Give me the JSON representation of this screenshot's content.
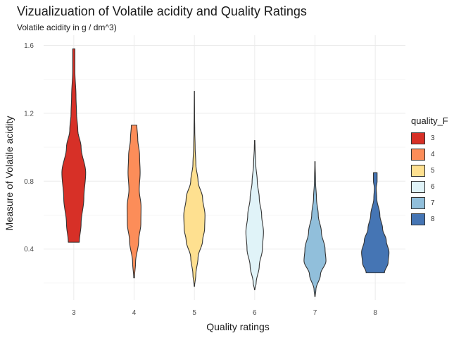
{
  "chart_data": {
    "type": "violin",
    "title": "Vizualizuation of Volatile acidity and Quality Ratings",
    "subtitle": "Volatile acidity in g / dm^3)",
    "xlabel": "Quality ratings",
    "ylabel": "Measure of Volatile acidity",
    "categories": [
      "3",
      "4",
      "5",
      "6",
      "7",
      "8"
    ],
    "y_ticks": [
      "0.4",
      "0.8",
      "1.2",
      "1.6"
    ],
    "ylim": [
      0.1,
      1.66
    ],
    "legend_title": "quality_F",
    "legend_position": "right",
    "grid": true,
    "colors": [
      "#d73027",
      "#fc8d59",
      "#fee090",
      "#e0f3f8",
      "#91bfdb",
      "#4575b4"
    ],
    "series": [
      {
        "name": "3",
        "min": 0.44,
        "max": 1.58,
        "profile": [
          [
            0.44,
            0.3
          ],
          [
            0.55,
            0.4
          ],
          [
            0.7,
            0.55
          ],
          [
            0.85,
            0.65
          ],
          [
            1.0,
            0.4
          ],
          [
            1.1,
            0.22
          ],
          [
            1.2,
            0.15
          ],
          [
            1.3,
            0.12
          ],
          [
            1.45,
            0.06
          ],
          [
            1.58,
            0.06
          ]
        ]
      },
      {
        "name": "4",
        "min": 0.23,
        "max": 1.13,
        "profile": [
          [
            0.23,
            0.02
          ],
          [
            0.32,
            0.08
          ],
          [
            0.45,
            0.25
          ],
          [
            0.55,
            0.37
          ],
          [
            0.65,
            0.38
          ],
          [
            0.75,
            0.28
          ],
          [
            0.85,
            0.33
          ],
          [
            0.95,
            0.3
          ],
          [
            1.05,
            0.2
          ],
          [
            1.13,
            0.15
          ]
        ]
      },
      {
        "name": "5",
        "min": 0.18,
        "max": 1.33,
        "profile": [
          [
            0.18,
            0.01
          ],
          [
            0.25,
            0.08
          ],
          [
            0.35,
            0.2
          ],
          [
            0.45,
            0.45
          ],
          [
            0.52,
            0.56
          ],
          [
            0.6,
            0.58
          ],
          [
            0.7,
            0.45
          ],
          [
            0.8,
            0.2
          ],
          [
            0.9,
            0.08
          ],
          [
            1.0,
            0.04
          ],
          [
            1.1,
            0.02
          ],
          [
            1.2,
            0.01
          ],
          [
            1.33,
            0.005
          ]
        ]
      },
      {
        "name": "6",
        "min": 0.16,
        "max": 1.04,
        "profile": [
          [
            0.16,
            0.01
          ],
          [
            0.2,
            0.08
          ],
          [
            0.3,
            0.25
          ],
          [
            0.4,
            0.42
          ],
          [
            0.5,
            0.48
          ],
          [
            0.6,
            0.38
          ],
          [
            0.7,
            0.25
          ],
          [
            0.8,
            0.14
          ],
          [
            0.9,
            0.06
          ],
          [
            1.0,
            0.02
          ],
          [
            1.04,
            0.01
          ]
        ]
      },
      {
        "name": "7",
        "min": 0.12,
        "max": 0.915,
        "profile": [
          [
            0.12,
            0.01
          ],
          [
            0.16,
            0.05
          ],
          [
            0.25,
            0.3
          ],
          [
            0.33,
            0.6
          ],
          [
            0.4,
            0.55
          ],
          [
            0.5,
            0.35
          ],
          [
            0.6,
            0.18
          ],
          [
            0.7,
            0.08
          ],
          [
            0.8,
            0.03
          ],
          [
            0.9,
            0.01
          ],
          [
            0.915,
            0.01
          ]
        ]
      },
      {
        "name": "8",
        "min": 0.26,
        "max": 0.85,
        "profile": [
          [
            0.26,
            0.5
          ],
          [
            0.32,
            0.7
          ],
          [
            0.38,
            0.75
          ],
          [
            0.45,
            0.6
          ],
          [
            0.52,
            0.4
          ],
          [
            0.6,
            0.25
          ],
          [
            0.7,
            0.08
          ],
          [
            0.76,
            0.05
          ],
          [
            0.8,
            0.1
          ],
          [
            0.85,
            0.1
          ]
        ]
      }
    ]
  }
}
